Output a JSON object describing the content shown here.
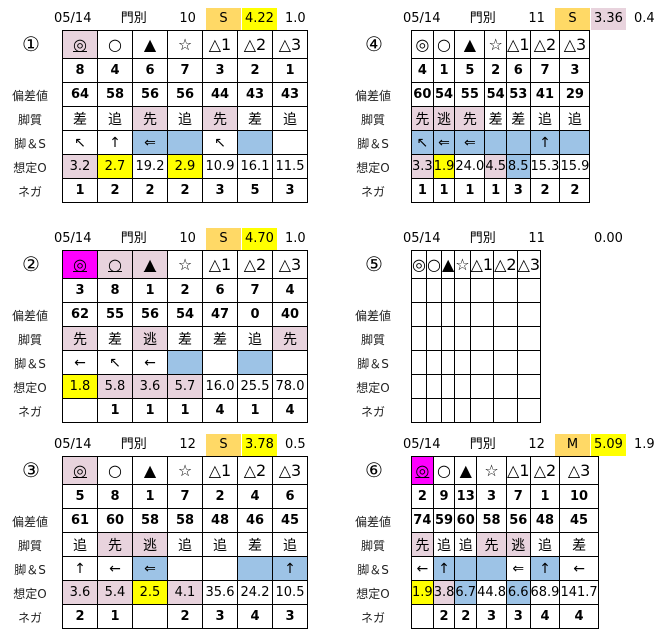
{
  "colors": {
    "pink": "#e8d3dd",
    "yellow": "#ffff00",
    "magenta": "#ff00ff",
    "blue": "#9dc3e6",
    "orange": "#ffd966"
  },
  "row_labels": [
    "",
    "",
    "偏差値",
    "脚質",
    "脚＆S",
    "想定O",
    "ネガ"
  ],
  "panels": [
    {
      "id": "①",
      "date": "05/14",
      "track": "門別",
      "count": "10",
      "grade": "S",
      "score": "4.22",
      "score_bg": "yellow",
      "diff": "1.0",
      "rows": [
        [
          {
            "v": "◎",
            "bg": "pink",
            "u": true
          },
          {
            "v": "○"
          },
          {
            "v": "▲"
          },
          {
            "v": "☆"
          },
          {
            "v": "△1"
          },
          {
            "v": "△2"
          },
          {
            "v": "△3"
          }
        ],
        [
          {
            "v": "8"
          },
          {
            "v": "4"
          },
          {
            "v": "6"
          },
          {
            "v": "7"
          },
          {
            "v": "3"
          },
          {
            "v": "2"
          },
          {
            "v": "1"
          }
        ],
        [
          {
            "v": "64"
          },
          {
            "v": "58"
          },
          {
            "v": "56"
          },
          {
            "v": "56"
          },
          {
            "v": "44"
          },
          {
            "v": "43"
          },
          {
            "v": "43"
          }
        ],
        [
          {
            "v": "差"
          },
          {
            "v": "追"
          },
          {
            "v": "先",
            "bg": "pink"
          },
          {
            "v": "追"
          },
          {
            "v": "先",
            "bg": "pink"
          },
          {
            "v": "差"
          },
          {
            "v": "追"
          }
        ],
        [
          {
            "v": "↖"
          },
          {
            "v": "↑"
          },
          {
            "v": "⇐",
            "bg": "blue"
          },
          {
            "v": "",
            "bg": "blue"
          },
          {
            "v": "↖"
          },
          {
            "v": "",
            "bg": "blue"
          },
          {
            "v": ""
          }
        ],
        [
          {
            "v": "3.2",
            "bg": "pink"
          },
          {
            "v": "2.7",
            "bg": "yellow"
          },
          {
            "v": "19.2"
          },
          {
            "v": "2.9",
            "bg": "yellow"
          },
          {
            "v": "10.9"
          },
          {
            "v": "16.1"
          },
          {
            "v": "11.5"
          }
        ],
        [
          {
            "v": "1"
          },
          {
            "v": "2"
          },
          {
            "v": "2"
          },
          {
            "v": "2"
          },
          {
            "v": "3"
          },
          {
            "v": "5"
          },
          {
            "v": "3"
          }
        ]
      ]
    },
    {
      "id": "④",
      "date": "05/14",
      "track": "門別",
      "count": "11",
      "grade": "S",
      "score": "3.36",
      "score_bg": "pink",
      "diff": "0.4",
      "rows": [
        [
          {
            "v": "◎"
          },
          {
            "v": "○"
          },
          {
            "v": "▲"
          },
          {
            "v": "☆"
          },
          {
            "v": "△1"
          },
          {
            "v": "△2"
          },
          {
            "v": "△3"
          }
        ],
        [
          {
            "v": "4"
          },
          {
            "v": "1"
          },
          {
            "v": "5"
          },
          {
            "v": "2"
          },
          {
            "v": "6"
          },
          {
            "v": "7"
          },
          {
            "v": "3"
          }
        ],
        [
          {
            "v": "60"
          },
          {
            "v": "54"
          },
          {
            "v": "55"
          },
          {
            "v": "54"
          },
          {
            "v": "53"
          },
          {
            "v": "41"
          },
          {
            "v": "29"
          }
        ],
        [
          {
            "v": "先",
            "bg": "pink"
          },
          {
            "v": "逃",
            "bg": "pink"
          },
          {
            "v": "先",
            "bg": "pink"
          },
          {
            "v": "差"
          },
          {
            "v": "差"
          },
          {
            "v": "追"
          },
          {
            "v": "追"
          }
        ],
        [
          {
            "v": "↖",
            "bg": "blue"
          },
          {
            "v": "⇐",
            "bg": "blue"
          },
          {
            "v": "⇐",
            "bg": "blue"
          },
          {
            "v": "",
            "bg": "blue"
          },
          {
            "v": "",
            "bg": "blue"
          },
          {
            "v": "↑",
            "bg": "blue"
          },
          {
            "v": "",
            "bg": "blue"
          }
        ],
        [
          {
            "v": "3.3",
            "bg": "pink"
          },
          {
            "v": "1.9",
            "bg": "yellow"
          },
          {
            "v": "24.0"
          },
          {
            "v": "4.5",
            "bg": "pink"
          },
          {
            "v": "8.5",
            "bg": "blue"
          },
          {
            "v": "15.3"
          },
          {
            "v": "15.9"
          }
        ],
        [
          {
            "v": "1"
          },
          {
            "v": "1"
          },
          {
            "v": "1"
          },
          {
            "v": "1"
          },
          {
            "v": "3"
          },
          {
            "v": "2"
          },
          {
            "v": "2"
          }
        ]
      ]
    },
    {
      "id": "②",
      "date": "05/14",
      "track": "門別",
      "count": "10",
      "grade": "S",
      "score": "4.70",
      "score_bg": "yellow",
      "diff": "1.0",
      "rows": [
        [
          {
            "v": "◎",
            "bg": "magenta",
            "u": true
          },
          {
            "v": "○",
            "bg": "pink",
            "u": true
          },
          {
            "v": "▲",
            "bg": "pink",
            "u": true
          },
          {
            "v": "☆"
          },
          {
            "v": "△1"
          },
          {
            "v": "△2"
          },
          {
            "v": "△3"
          }
        ],
        [
          {
            "v": "3"
          },
          {
            "v": "8"
          },
          {
            "v": "1"
          },
          {
            "v": "2"
          },
          {
            "v": "6"
          },
          {
            "v": "7"
          },
          {
            "v": "4"
          }
        ],
        [
          {
            "v": "62"
          },
          {
            "v": "55"
          },
          {
            "v": "56"
          },
          {
            "v": "54"
          },
          {
            "v": "47"
          },
          {
            "v": "0"
          },
          {
            "v": "40"
          }
        ],
        [
          {
            "v": "先",
            "bg": "pink"
          },
          {
            "v": "差"
          },
          {
            "v": "逃",
            "bg": "pink"
          },
          {
            "v": "差"
          },
          {
            "v": "差"
          },
          {
            "v": "追"
          },
          {
            "v": "先",
            "bg": "pink"
          }
        ],
        [
          {
            "v": "←"
          },
          {
            "v": "↖"
          },
          {
            "v": "←"
          },
          {
            "v": "",
            "bg": "blue"
          },
          {
            "v": ""
          },
          {
            "v": "",
            "bg": "blue"
          },
          {
            "v": ""
          }
        ],
        [
          {
            "v": "1.8",
            "bg": "yellow"
          },
          {
            "v": "5.8",
            "bg": "pink"
          },
          {
            "v": "3.6",
            "bg": "pink"
          },
          {
            "v": "5.7",
            "bg": "pink"
          },
          {
            "v": "16.0"
          },
          {
            "v": "25.5"
          },
          {
            "v": "78.0"
          }
        ],
        [
          {
            "v": ""
          },
          {
            "v": "1"
          },
          {
            "v": "1"
          },
          {
            "v": "1"
          },
          {
            "v": "4"
          },
          {
            "v": "1"
          },
          {
            "v": "4"
          }
        ]
      ]
    },
    {
      "id": "⑤",
      "date": "05/14",
      "track": "門別",
      "count": "11",
      "grade": "",
      "score": "0.00",
      "score_bg": "",
      "diff": "",
      "rows": [
        [
          {
            "v": "◎"
          },
          {
            "v": "○"
          },
          {
            "v": "▲"
          },
          {
            "v": "☆"
          },
          {
            "v": "△1"
          },
          {
            "v": "△2"
          },
          {
            "v": "△3"
          }
        ],
        [
          {
            "v": ""
          },
          {
            "v": ""
          },
          {
            "v": ""
          },
          {
            "v": ""
          },
          {
            "v": ""
          },
          {
            "v": ""
          },
          {
            "v": ""
          }
        ],
        [
          {
            "v": ""
          },
          {
            "v": ""
          },
          {
            "v": ""
          },
          {
            "v": ""
          },
          {
            "v": ""
          },
          {
            "v": ""
          },
          {
            "v": ""
          }
        ],
        [
          {
            "v": ""
          },
          {
            "v": ""
          },
          {
            "v": ""
          },
          {
            "v": ""
          },
          {
            "v": ""
          },
          {
            "v": ""
          },
          {
            "v": ""
          }
        ],
        [
          {
            "v": ""
          },
          {
            "v": ""
          },
          {
            "v": ""
          },
          {
            "v": ""
          },
          {
            "v": ""
          },
          {
            "v": ""
          },
          {
            "v": ""
          }
        ],
        [
          {
            "v": ""
          },
          {
            "v": ""
          },
          {
            "v": ""
          },
          {
            "v": ""
          },
          {
            "v": ""
          },
          {
            "v": ""
          },
          {
            "v": ""
          }
        ],
        [
          {
            "v": ""
          },
          {
            "v": ""
          },
          {
            "v": ""
          },
          {
            "v": ""
          },
          {
            "v": ""
          },
          {
            "v": ""
          },
          {
            "v": ""
          }
        ]
      ]
    },
    {
      "id": "③",
      "date": "05/14",
      "track": "門別",
      "count": "12",
      "grade": "S",
      "score": "3.78",
      "score_bg": "yellow",
      "diff": "0.5",
      "rows": [
        [
          {
            "v": "◎",
            "bg": "pink",
            "u": true
          },
          {
            "v": "○"
          },
          {
            "v": "▲"
          },
          {
            "v": "☆"
          },
          {
            "v": "△1"
          },
          {
            "v": "△2"
          },
          {
            "v": "△3"
          }
        ],
        [
          {
            "v": "5"
          },
          {
            "v": "8"
          },
          {
            "v": "1"
          },
          {
            "v": "7"
          },
          {
            "v": "2"
          },
          {
            "v": "4"
          },
          {
            "v": "6"
          }
        ],
        [
          {
            "v": "61"
          },
          {
            "v": "60"
          },
          {
            "v": "58"
          },
          {
            "v": "58"
          },
          {
            "v": "48"
          },
          {
            "v": "46"
          },
          {
            "v": "45"
          }
        ],
        [
          {
            "v": "追"
          },
          {
            "v": "先",
            "bg": "pink"
          },
          {
            "v": "逃",
            "bg": "pink"
          },
          {
            "v": "追"
          },
          {
            "v": "追"
          },
          {
            "v": "差"
          },
          {
            "v": "追"
          }
        ],
        [
          {
            "v": "↑"
          },
          {
            "v": "←"
          },
          {
            "v": "⇐",
            "bg": "blue"
          },
          {
            "v": ""
          },
          {
            "v": ""
          },
          {
            "v": "",
            "bg": "blue"
          },
          {
            "v": "↑",
            "bg": "blue"
          }
        ],
        [
          {
            "v": "3.6",
            "bg": "pink"
          },
          {
            "v": "5.4",
            "bg": "pink"
          },
          {
            "v": "2.5",
            "bg": "yellow"
          },
          {
            "v": "4.1",
            "bg": "pink"
          },
          {
            "v": "35.6"
          },
          {
            "v": "24.2"
          },
          {
            "v": "10.5"
          }
        ],
        [
          {
            "v": "2"
          },
          {
            "v": "1"
          },
          {
            "v": ""
          },
          {
            "v": "2"
          },
          {
            "v": "3"
          },
          {
            "v": "4"
          },
          {
            "v": "3"
          }
        ]
      ]
    },
    {
      "id": "⑥",
      "date": "05/14",
      "track": "門別",
      "count": "12",
      "grade": "M",
      "score": "5.09",
      "score_bg": "yellow",
      "diff": "1.9",
      "rows": [
        [
          {
            "v": "◎",
            "bg": "magenta",
            "u": true
          },
          {
            "v": "○"
          },
          {
            "v": "▲"
          },
          {
            "v": "☆"
          },
          {
            "v": "△1"
          },
          {
            "v": "△2"
          },
          {
            "v": "△3"
          }
        ],
        [
          {
            "v": "2"
          },
          {
            "v": "9"
          },
          {
            "v": "13"
          },
          {
            "v": "3"
          },
          {
            "v": "7"
          },
          {
            "v": "1"
          },
          {
            "v": "10"
          }
        ],
        [
          {
            "v": "74"
          },
          {
            "v": "59"
          },
          {
            "v": "60"
          },
          {
            "v": "58"
          },
          {
            "v": "56"
          },
          {
            "v": "48"
          },
          {
            "v": "45"
          }
        ],
        [
          {
            "v": "先",
            "bg": "pink"
          },
          {
            "v": "追"
          },
          {
            "v": "追"
          },
          {
            "v": "先",
            "bg": "pink"
          },
          {
            "v": "逃",
            "bg": "pink"
          },
          {
            "v": "追"
          },
          {
            "v": "差"
          }
        ],
        [
          {
            "v": "←"
          },
          {
            "v": "↑",
            "bg": "blue"
          },
          {
            "v": "",
            "bg": "blue"
          },
          {
            "v": "",
            "bg": "blue"
          },
          {
            "v": "⇐"
          },
          {
            "v": "↑",
            "bg": "blue"
          },
          {
            "v": "←"
          }
        ],
        [
          {
            "v": "1.9",
            "bg": "yellow"
          },
          {
            "v": "3.8",
            "bg": "pink"
          },
          {
            "v": "6.7",
            "bg": "blue"
          },
          {
            "v": "44.8"
          },
          {
            "v": "6.6",
            "bg": "blue"
          },
          {
            "v": "68.9"
          },
          {
            "v": "141.7"
          }
        ],
        [
          {
            "v": ""
          },
          {
            "v": "2"
          },
          {
            "v": "2"
          },
          {
            "v": "3"
          },
          {
            "v": "3"
          },
          {
            "v": "4"
          },
          {
            "v": "4"
          }
        ]
      ]
    }
  ]
}
